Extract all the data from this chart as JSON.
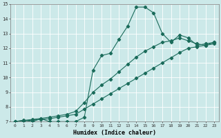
{
  "xlabel": "Humidex (Indice chaleur)",
  "xlim": [
    -0.5,
    23.5
  ],
  "ylim": [
    7,
    15
  ],
  "xticks": [
    0,
    1,
    2,
    3,
    4,
    5,
    6,
    7,
    8,
    9,
    10,
    11,
    12,
    13,
    14,
    15,
    16,
    17,
    18,
    19,
    20,
    21,
    22,
    23
  ],
  "yticks": [
    7,
    8,
    9,
    10,
    11,
    12,
    13,
    14,
    15
  ],
  "background_color": "#cce9e9",
  "line_color": "#1a6b5a",
  "grid_color": "#ffffff",
  "line1_x": [
    0,
    1,
    2,
    3,
    4,
    5,
    6,
    7,
    8,
    9,
    10,
    11,
    12,
    13,
    14,
    15,
    16,
    17,
    18,
    19,
    20,
    21,
    22,
    23
  ],
  "line1_y": [
    7.0,
    7.1,
    7.0,
    7.2,
    7.0,
    7.0,
    7.0,
    7.0,
    7.3,
    10.5,
    11.5,
    11.65,
    12.6,
    13.5,
    14.8,
    14.8,
    14.4,
    13.0,
    12.4,
    12.9,
    12.7,
    12.2,
    12.3,
    12.4
  ],
  "line2_x": [
    0,
    1,
    2,
    3,
    4,
    5,
    6,
    7,
    8,
    9,
    10,
    11,
    12,
    13,
    14,
    15,
    16,
    17,
    18,
    19,
    20,
    21,
    22,
    23
  ],
  "line2_y": [
    7.0,
    7.05,
    7.1,
    7.15,
    7.2,
    7.3,
    7.4,
    7.5,
    7.85,
    8.2,
    8.55,
    8.9,
    9.25,
    9.6,
    9.95,
    10.3,
    10.65,
    11.0,
    11.35,
    11.7,
    12.0,
    12.1,
    12.2,
    12.3
  ],
  "line3_x": [
    0,
    1,
    2,
    3,
    4,
    5,
    6,
    7,
    8,
    9,
    10,
    11,
    12,
    13,
    14,
    15,
    16,
    17,
    18,
    19,
    20,
    21,
    22,
    23
  ],
  "line3_y": [
    7.0,
    7.08,
    7.15,
    7.22,
    7.3,
    7.4,
    7.5,
    7.7,
    8.3,
    9.0,
    9.5,
    9.9,
    10.4,
    10.9,
    11.4,
    11.8,
    12.1,
    12.4,
    12.5,
    12.7,
    12.5,
    12.3,
    12.2,
    12.4
  ]
}
